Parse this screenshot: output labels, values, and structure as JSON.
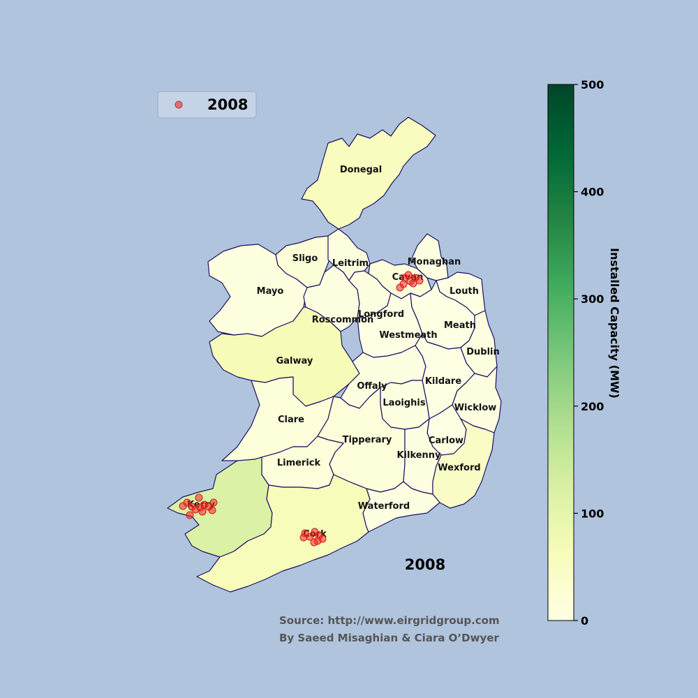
{
  "legend": {
    "label": "2008",
    "marker_color": "#e05050"
  },
  "year_label": "2008",
  "source": "Source: http://www.eirgridgroup.com",
  "credit": "By Saeed Misaghian & Ciara O’Dwyer",
  "colorbar": {
    "label": "Installed Capacity (MW)",
    "min": 0,
    "max": 500,
    "ticks": [
      "0",
      "100",
      "200",
      "300",
      "400",
      "500"
    ],
    "colormap": [
      "#ffffe5",
      "#f7fcb9",
      "#d9f0a3",
      "#addd8e",
      "#78c679",
      "#41ab5d",
      "#238443",
      "#006837",
      "#004529"
    ]
  },
  "counties": [
    {
      "name": "Donegal",
      "capacity": 55
    },
    {
      "name": "Sligo",
      "capacity": 20
    },
    {
      "name": "Leitrim",
      "capacity": 10
    },
    {
      "name": "Mayo",
      "capacity": 10
    },
    {
      "name": "Cavan",
      "capacity": 15
    },
    {
      "name": "Monaghan",
      "capacity": 5
    },
    {
      "name": "Louth",
      "capacity": 3
    },
    {
      "name": "Roscommon",
      "capacity": 5
    },
    {
      "name": "Longford",
      "capacity": 5
    },
    {
      "name": "Westmeath",
      "capacity": 3
    },
    {
      "name": "Meath",
      "capacity": 2
    },
    {
      "name": "Dublin",
      "capacity": 8
    },
    {
      "name": "Galway",
      "capacity": 65
    },
    {
      "name": "Offaly",
      "capacity": 5
    },
    {
      "name": "Kildare",
      "capacity": 2
    },
    {
      "name": "Laoighis",
      "capacity": 5
    },
    {
      "name": "Wicklow",
      "capacity": 5
    },
    {
      "name": "Clare",
      "capacity": 15
    },
    {
      "name": "Tipperary",
      "capacity": 15
    },
    {
      "name": "Carlow",
      "capacity": 3
    },
    {
      "name": "Kilkenny",
      "capacity": 5
    },
    {
      "name": "Wexford",
      "capacity": 45
    },
    {
      "name": "Limerick",
      "capacity": 15
    },
    {
      "name": "Kerry",
      "capacity": 120
    },
    {
      "name": "Cork",
      "capacity": 60
    },
    {
      "name": "Waterford",
      "capacity": 5
    }
  ]
}
